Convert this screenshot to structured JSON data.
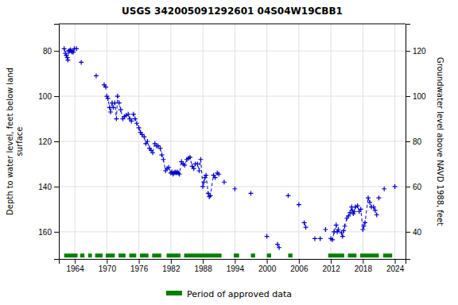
{
  "chart_data": {
    "type": "line",
    "title": "USGS 342005091292601 04S04W19CBB1",
    "ylabel": "Depth to water level, feet below land\nsurface",
    "y2label": "Groundwater level above NAVD 1988, feet",
    "xlim": [
      1961.0,
      2026.0
    ],
    "xticks": [
      1964,
      1970,
      1976,
      1982,
      1988,
      1994,
      2000,
      2006,
      2012,
      2018,
      2024
    ],
    "ylim": [
      172,
      68
    ],
    "yticks": [
      80,
      100,
      120,
      140,
      160
    ],
    "y2lim": [
      28,
      132
    ],
    "y2ticks": [
      40,
      60,
      80,
      100,
      120
    ],
    "grid": true,
    "legend": "bottom",
    "series": [
      {
        "color": "#0000cc",
        "marker": "plus",
        "line_style": "dashed",
        "x": [
          1962.0,
          1962.2,
          1962.4,
          1962.6,
          1962.7,
          1962.8,
          1963.0,
          1963.15,
          1963.3,
          1963.5,
          1963.7,
          1963.9,
          1964.3
        ],
        "values": [
          79.0,
          81.0,
          82.0,
          83.0,
          84.0,
          80.0,
          80.0,
          79.5,
          80.0,
          80.5,
          80.5,
          79.0,
          79.0
        ]
      },
      {
        "color": "#0000cc",
        "marker": "plus",
        "line_style": "dashed",
        "x": [
          1965.2
        ],
        "values": [
          85.0
        ]
      },
      {
        "color": "#0000cc",
        "marker": "plus",
        "line_style": "dashed",
        "x": [
          1968.0
        ],
        "values": [
          91.0
        ]
      },
      {
        "color": "#0000cc",
        "marker": "plus",
        "line_style": "dashed",
        "x": [
          1969.5,
          1969.8
        ],
        "values": [
          95.0,
          96.0
        ]
      },
      {
        "color": "#0000cc",
        "marker": "plus",
        "line_style": "dashed",
        "x": [
          1970.0,
          1970.2,
          1970.5,
          1970.7,
          1971.0,
          1971.2,
          1971.5,
          1971.8,
          1972.0,
          1972.3,
          1972.6,
          1973.0,
          1973.3,
          1973.6,
          1974.0,
          1974.3,
          1974.6,
          1975.0,
          1975.3,
          1975.6,
          1976.0,
          1976.3,
          1976.6,
          1977.0,
          1977.3,
          1977.6,
          1978.0,
          1978.3,
          1978.6,
          1979.0,
          1979.3,
          1979.6,
          1980.0,
          1980.3,
          1980.6,
          1981.0,
          1981.3,
          1981.6,
          1982.0,
          1982.2,
          1982.4,
          1982.6,
          1982.8,
          1983.0,
          1983.2,
          1983.4,
          1983.6,
          1984.0,
          1984.3,
          1984.6,
          1985.0,
          1985.3,
          1985.6,
          1986.0,
          1986.3,
          1986.6,
          1987.0,
          1987.3,
          1987.6,
          1988.0,
          1988.2,
          1988.4,
          1988.6,
          1989.0,
          1989.2,
          1989.4,
          1990.0,
          1990.3,
          1990.7,
          1991.0
        ],
        "values": [
          100.0,
          101.0,
          105.0,
          107.0,
          103.0,
          105.0,
          103.0,
          110.0,
          100.0,
          103.0,
          106.0,
          110.0,
          109.0,
          108.5,
          108.0,
          110.0,
          111.0,
          108.0,
          110.0,
          112.0,
          114.0,
          116.0,
          117.0,
          118.0,
          121.0,
          120.0,
          123.0,
          124.0,
          125.0,
          121.0,
          122.0,
          122.0,
          123.0,
          126.0,
          128.0,
          133.0,
          132.0,
          131.5,
          134.0,
          133.5,
          134.5,
          134.0,
          133.5,
          134.0,
          133.5,
          134.0,
          134.5,
          129.0,
          130.0,
          130.5,
          128.0,
          127.5,
          127.0,
          131.0,
          132.0,
          130.0,
          130.0,
          133.0,
          128.0,
          140.0,
          138.0,
          136.0,
          135.0,
          143.0,
          144.5,
          144.0,
          135.0,
          136.0,
          134.0,
          134.5
        ]
      },
      {
        "color": "#0000cc",
        "marker": "plus",
        "line_style": "dashed",
        "x": [
          1992.0
        ],
        "values": [
          138.0
        ]
      },
      {
        "color": "#0000cc",
        "marker": "plus",
        "line_style": "dashed",
        "x": [
          1994.0
        ],
        "values": [
          141.0
        ]
      },
      {
        "color": "#0000cc",
        "marker": "plus",
        "line_style": "dashed",
        "x": [
          1997.0
        ],
        "values": [
          143.0
        ]
      },
      {
        "color": "#0000cc",
        "marker": "plus",
        "line_style": "dashed",
        "x": [
          2000.0
        ],
        "values": [
          162.0
        ]
      },
      {
        "color": "#0000cc",
        "marker": "plus",
        "line_style": "dashed",
        "x": [
          2002.0,
          2002.3
        ],
        "values": [
          165.5,
          167.0
        ]
      },
      {
        "color": "#0000cc",
        "marker": "plus",
        "line_style": "dashed",
        "x": [
          2004.0
        ],
        "values": [
          144.0
        ]
      },
      {
        "color": "#0000cc",
        "marker": "plus",
        "line_style": "dashed",
        "x": [
          2006.0
        ],
        "values": [
          148.0
        ]
      },
      {
        "color": "#0000cc",
        "marker": "plus",
        "line_style": "dashed",
        "x": [
          2007.0,
          2007.3
        ],
        "values": [
          156.0,
          158.0
        ]
      },
      {
        "color": "#0000cc",
        "marker": "plus",
        "line_style": "dashed",
        "x": [
          2009.0
        ],
        "values": [
          163.0
        ]
      },
      {
        "color": "#0000cc",
        "marker": "plus",
        "line_style": "dashed",
        "x": [
          2010.0
        ],
        "values": [
          163.0
        ]
      },
      {
        "color": "#0000cc",
        "marker": "plus",
        "line_style": "dashed",
        "x": [
          2011.0
        ],
        "values": [
          159.0
        ]
      },
      {
        "color": "#0000cc",
        "marker": "plus",
        "line_style": "dashed",
        "x": [
          2012.0,
          2012.3,
          2012.6,
          2013.0,
          2013.2,
          2013.4,
          2014.0,
          2014.2,
          2014.4,
          2014.6,
          2015.0,
          2015.3,
          2015.6,
          2015.9,
          2016.0,
          2016.2,
          2016.4,
          2016.6,
          2017.0,
          2017.3,
          2017.6,
          2018.0,
          2018.2,
          2018.4,
          2019.0,
          2019.3,
          2019.6,
          2020.0,
          2020.3,
          2020.6
        ],
        "values": [
          163.0,
          163.5,
          160.0,
          157.0,
          160.0,
          159.0,
          160.5,
          162.0,
          159.5,
          157.5,
          154.0,
          153.0,
          151.5,
          149.0,
          150.5,
          152.0,
          151.0,
          149.0,
          148.5,
          151.0,
          150.0,
          159.0,
          157.5,
          156.0,
          145.0,
          147.0,
          149.0,
          149.0,
          150.5,
          152.5
        ]
      },
      {
        "color": "#0000cc",
        "marker": "plus",
        "line_style": "dashed",
        "x": [
          2021.0
        ],
        "values": [
          145.0
        ]
      },
      {
        "color": "#0000cc",
        "marker": "plus",
        "line_style": "dashed",
        "x": [
          2022.0
        ],
        "values": [
          141.0
        ]
      },
      {
        "color": "#0000cc",
        "marker": "plus",
        "line_style": "dashed",
        "x": [
          2024.0
        ],
        "values": [
          140.0
        ]
      },
      {
        "name": "Period of approved data",
        "type": "range",
        "color": "#008000",
        "y": 170.5,
        "starts": [
          1962.0,
          1965.0,
          1966.5,
          1967.8,
          1969.8,
          1972.2,
          1974.2,
          1976.2,
          1978.5,
          1981.2,
          1984.5,
          1993.8,
          1997.0,
          2000.0,
          2004.0,
          2011.5,
          2015.2,
          2017.5,
          2021.8
        ],
        "ends": [
          1964.5,
          1965.8,
          1967.2,
          1969.2,
          1971.5,
          1973.5,
          1975.5,
          1977.8,
          1980.2,
          1983.8,
          1991.5,
          1994.8,
          1997.8,
          2000.8,
          2004.8,
          2014.5,
          2016.8,
          2021.0,
          2023.5
        ]
      }
    ]
  }
}
